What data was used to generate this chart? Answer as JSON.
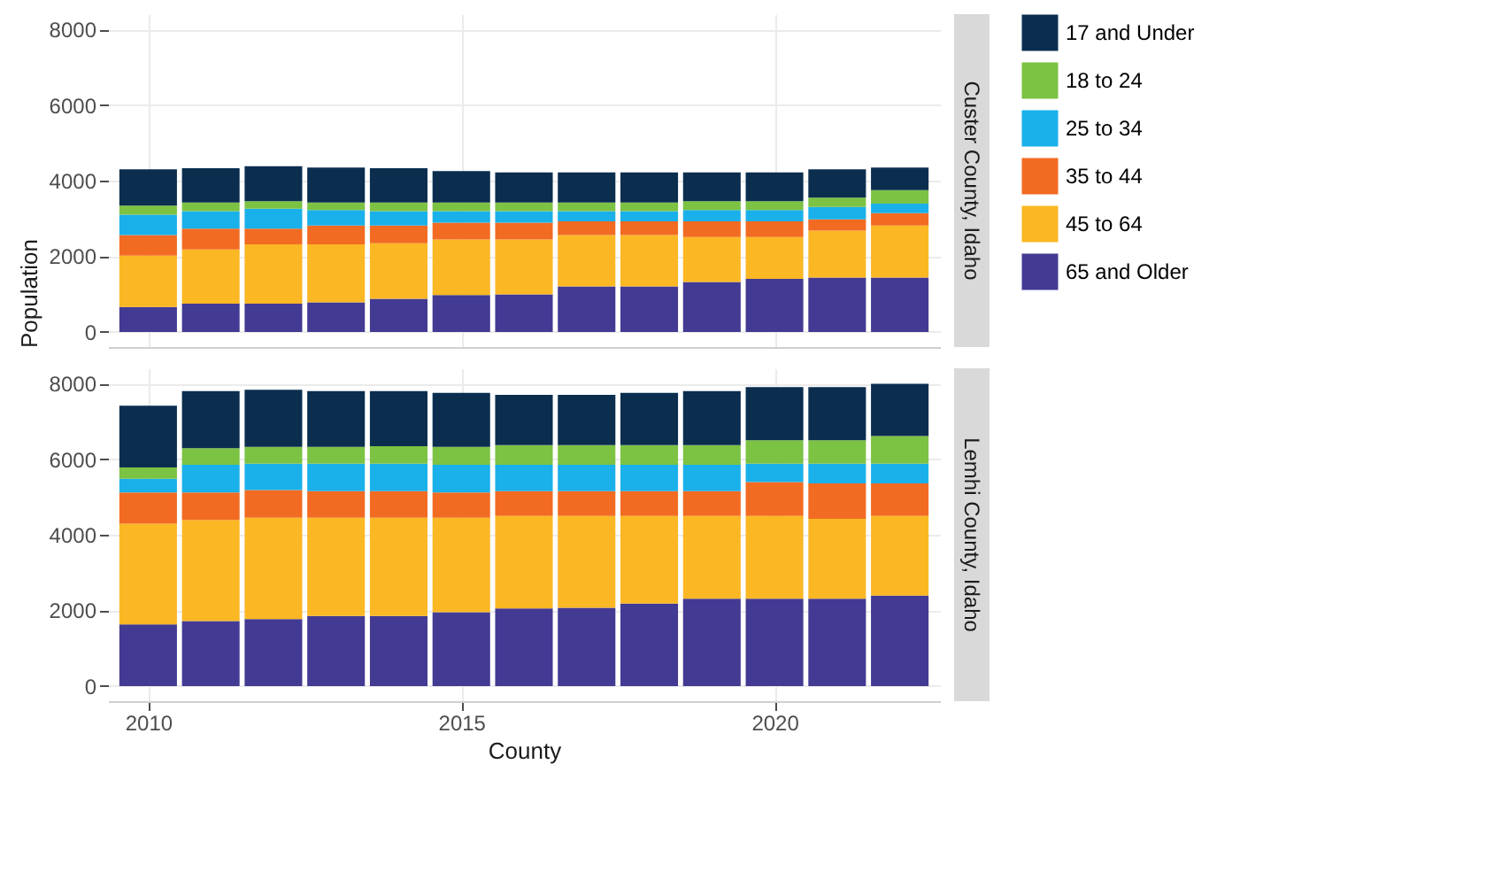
{
  "chart_data": [
    {
      "type": "bar",
      "stacked": true,
      "annotations": [
        "Custer County, Idaho"
      ],
      "ylabel": "Population",
      "x": [
        2010,
        2011,
        2012,
        2013,
        2014,
        2015,
        2016,
        2017,
        2018,
        2019,
        2020,
        2021,
        2022
      ],
      "xlim": [
        2009.5,
        2022.5
      ],
      "xticks": [
        2010,
        2015,
        2020
      ],
      "ylim": [
        -400,
        8400
      ],
      "yticks": [
        0,
        2000,
        4000,
        6000,
        8000
      ],
      "grid": true,
      "legend": "right",
      "tick_labels": "y",
      "series": [
        {
          "name": "65 and Older",
          "color": "#433a93",
          "values": [
            660,
            745,
            745,
            780,
            875,
            975,
            990,
            1205,
            1205,
            1320,
            1405,
            1440,
            1440
          ]
        },
        {
          "name": "45 to 64",
          "color": "#fbb724",
          "values": [
            1355,
            1435,
            1570,
            1535,
            1470,
            1470,
            1455,
            1355,
            1355,
            1190,
            1105,
            1240,
            1370
          ]
        },
        {
          "name": "35 to 44",
          "color": "#f26b22",
          "values": [
            545,
            550,
            415,
            495,
            465,
            445,
            445,
            365,
            365,
            415,
            415,
            295,
            330
          ]
        },
        {
          "name": "25 to 34",
          "color": "#1ab0ea",
          "values": [
            540,
            460,
            525,
            410,
            380,
            300,
            300,
            265,
            265,
            295,
            295,
            330,
            250
          ]
        },
        {
          "name": "18 to 24",
          "color": "#7cc243",
          "values": [
            240,
            230,
            200,
            200,
            230,
            230,
            230,
            230,
            230,
            235,
            235,
            245,
            360
          ]
        },
        {
          "name": "17 and Under",
          "color": "#0b2e4f",
          "values": [
            960,
            910,
            925,
            925,
            910,
            830,
            795,
            795,
            795,
            760,
            760,
            750,
            595
          ]
        }
      ]
    },
    {
      "type": "bar",
      "stacked": true,
      "annotations": [
        "Lemhi County, Idaho"
      ],
      "xlabel": "County",
      "x": [
        2010,
        2011,
        2012,
        2013,
        2014,
        2015,
        2016,
        2017,
        2018,
        2019,
        2020,
        2021,
        2022
      ],
      "xlim": [
        2009.5,
        2022.5
      ],
      "xticks": [
        2010,
        2015,
        2020
      ],
      "ylim": [
        -400,
        8400
      ],
      "yticks": [
        0,
        2000,
        4000,
        6000,
        8000
      ],
      "grid": true,
      "legend": "right",
      "series": [
        {
          "name": "65 and Older",
          "color": "#433a93",
          "values": [
            1630,
            1720,
            1770,
            1850,
            1850,
            1950,
            2050,
            2070,
            2180,
            2310,
            2310,
            2310,
            2390
          ]
        },
        {
          "name": "45 to 64",
          "color": "#fbb724",
          "values": [
            2660,
            2670,
            2680,
            2600,
            2600,
            2500,
            2450,
            2430,
            2320,
            2190,
            2190,
            2110,
            2110
          ]
        },
        {
          "name": "35 to 44",
          "color": "#f26b22",
          "values": [
            830,
            730,
            730,
            700,
            700,
            670,
            650,
            650,
            650,
            650,
            890,
            940,
            860
          ]
        },
        {
          "name": "25 to 34",
          "color": "#1ab0ea",
          "values": [
            360,
            730,
            700,
            730,
            730,
            730,
            700,
            700,
            700,
            700,
            490,
            520,
            520
          ]
        },
        {
          "name": "18 to 24",
          "color": "#7cc243",
          "values": [
            300,
            440,
            440,
            440,
            460,
            470,
            520,
            520,
            520,
            520,
            620,
            620,
            730
          ]
        },
        {
          "name": "17 and Under",
          "color": "#0b2e4f",
          "values": [
            1630,
            1510,
            1510,
            1480,
            1460,
            1430,
            1330,
            1330,
            1380,
            1430,
            1400,
            1400,
            1380
          ]
        }
      ]
    }
  ]
}
